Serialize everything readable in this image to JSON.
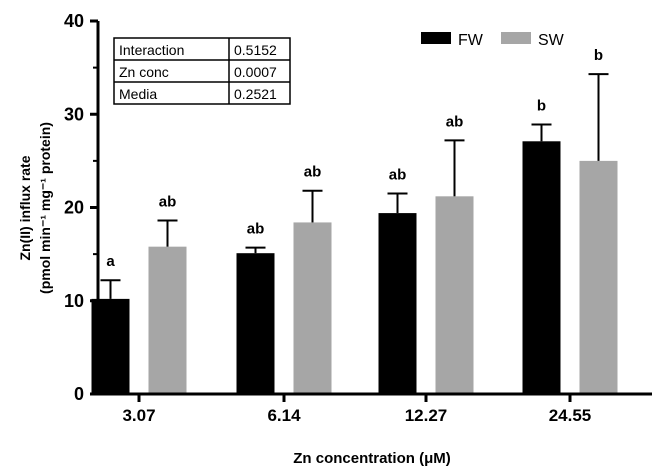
{
  "chart_data": {
    "type": "bar",
    "title": "",
    "categories": [
      "3.07",
      "6.14",
      "12.27",
      "24.55"
    ],
    "series": [
      {
        "name": "FW",
        "color": "#000000",
        "values": [
          10.2,
          15.1,
          19.4,
          27.1
        ],
        "errors": [
          2.0,
          0.6,
          2.1,
          1.8
        ],
        "significance": [
          "a",
          "ab",
          "ab",
          "b"
        ]
      },
      {
        "name": "SW",
        "color": "#a6a6a6",
        "values": [
          15.8,
          18.4,
          21.2,
          25.0
        ],
        "errors": [
          2.8,
          3.4,
          6.0,
          9.3
        ],
        "significance": [
          "ab",
          "ab",
          "ab",
          "b"
        ]
      }
    ],
    "xlabel": "Zn concentration (μM)",
    "ylabel_line1": "Zn(II) influx rate",
    "ylabel_line2": "(pmol min⁻¹ mg⁻¹ protein)",
    "ylim": [
      0,
      40
    ],
    "yticks": [
      "0",
      "10",
      "20",
      "30",
      "40"
    ],
    "legend_position": "top-right",
    "grid": false,
    "stats_table": [
      {
        "factor": "Interaction",
        "p": "0.5152"
      },
      {
        "factor": "Zn conc",
        "p": "0.0007"
      },
      {
        "factor": "Media",
        "p": "0.2521"
      }
    ]
  }
}
